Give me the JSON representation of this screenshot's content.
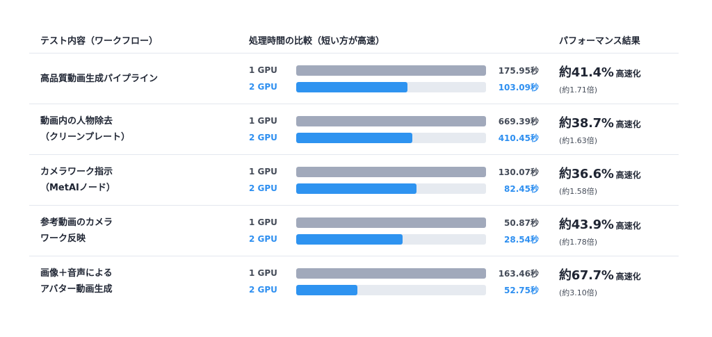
{
  "header": {
    "task": "テスト内容（ワークフロー）",
    "chart": "処理時間の比較（短い方が高速）",
    "result": "パフォーマンス結果"
  },
  "gpu_labels": [
    "1 GPU",
    "2 GPU"
  ],
  "rows": [
    {
      "task": "高品質動画生成パイプライン",
      "one_gpu": "175.95秒",
      "two_gpu": "103.09秒",
      "speedup": "約41.4%",
      "speedup_suffix": "高速化",
      "ratio": "(約1.71倍)"
    },
    {
      "task": "動画内の人物除去\n（クリーンプレート）",
      "one_gpu": "669.39秒",
      "two_gpu": "410.45秒",
      "speedup": "約38.7%",
      "speedup_suffix": "高速化",
      "ratio": "(約1.63倍)"
    },
    {
      "task": "カメラワーク指示\n（MetAIノード）",
      "one_gpu": "130.07秒",
      "two_gpu": "82.45秒",
      "speedup": "約36.6%",
      "speedup_suffix": "高速化",
      "ratio": "(約1.58倍)"
    },
    {
      "task": "参考動画のカメラ\nワーク反映",
      "one_gpu": "50.87秒",
      "two_gpu": "28.54秒",
      "speedup": "約43.9%",
      "speedup_suffix": "高速化",
      "ratio": "(約1.78倍)"
    },
    {
      "task": "画像＋音声による\nアバター動画生成",
      "one_gpu": "163.46秒",
      "two_gpu": "52.75秒",
      "speedup": "約67.7%",
      "speedup_suffix": "高速化",
      "ratio": "(約3.10倍)"
    }
  ],
  "chart_data": {
    "type": "bar",
    "categories": [
      "高品質動画生成パイプライン",
      "動画内の人物除去（クリーンプレート）",
      "カメラワーク指示（MetAIノード）",
      "参考動画のカメラワーク反映",
      "画像＋音声によるアバター動画生成"
    ],
    "series": [
      {
        "name": "1 GPU",
        "values": [
          175.95,
          669.39,
          130.07,
          50.87,
          163.46
        ],
        "color": "#a1a9bb"
      },
      {
        "name": "2 GPU",
        "values": [
          103.09,
          410.45,
          82.45,
          28.54,
          52.75
        ],
        "color": "#2e93f0"
      }
    ],
    "title": "処理時間の比較（短い方が高速）",
    "xlabel": "",
    "ylabel": "",
    "bar_scale": "relative to 1 GPU time per row",
    "grid": false
  }
}
